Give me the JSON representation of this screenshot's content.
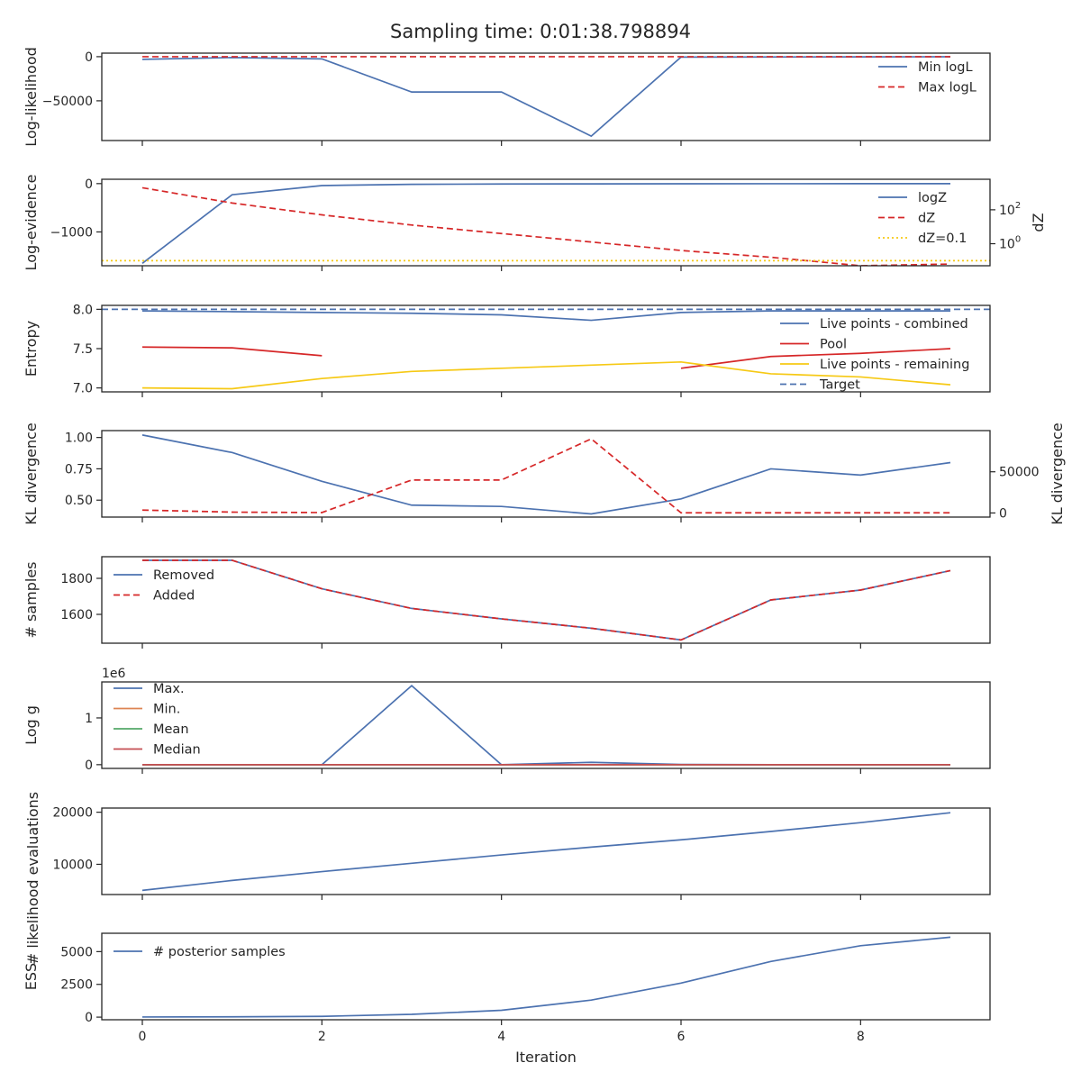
{
  "figure": {
    "title": "Sampling time: 0:01:38.798894",
    "xlabel": "Iteration",
    "x_ticks": [
      "0",
      "2",
      "4",
      "6",
      "8"
    ]
  },
  "chart_data": [
    {
      "type": "line",
      "ylabel": "Log-likelihood",
      "ylim": [
        -95000,
        4000
      ],
      "yticks": [
        {
          "v": 0,
          "label": "0"
        },
        {
          "v": -50000,
          "label": "−50000"
        }
      ],
      "legend": "top-right",
      "series": [
        {
          "name": "Min logL",
          "color": "#4c72b0",
          "dash": "",
          "x": [
            0,
            1,
            2,
            3,
            4,
            5,
            6,
            7,
            8,
            9
          ],
          "values": [
            -3000,
            -1000,
            -2500,
            -40000,
            -40000,
            -90000,
            -500,
            -300,
            -200,
            -100
          ]
        },
        {
          "name": "Max logL",
          "color": "#d62728",
          "dash": "dashed",
          "x": [
            0,
            1,
            2,
            3,
            4,
            5,
            6,
            7,
            8,
            9
          ],
          "values": [
            0,
            0,
            0,
            0,
            0,
            0,
            0,
            0,
            0,
            0
          ]
        }
      ]
    },
    {
      "type": "line",
      "ylabel": "Log-evidence",
      "ylim": [
        -1700,
        90
      ],
      "yticks": [
        {
          "v": 0,
          "label": "0"
        },
        {
          "v": -1000,
          "label": "−1000"
        }
      ],
      "secondary": {
        "ylabel": "dZ",
        "scale": "log",
        "ylim_log10": [
          -1.3,
          3.8
        ],
        "yticks": [
          {
            "v": 2,
            "label": "10",
            "exp": "2"
          },
          {
            "v": 0,
            "label": "10",
            "exp": "0"
          }
        ]
      },
      "legend": "top-right",
      "series": [
        {
          "name": "logZ",
          "color": "#4c72b0",
          "dash": "",
          "axis": "left",
          "x": [
            0,
            1,
            2,
            3,
            4,
            5,
            6,
            7,
            8,
            9
          ],
          "values": [
            -1650,
            -230,
            -40,
            -15,
            -8,
            -5,
            -3,
            -2,
            -1,
            -1
          ]
        },
        {
          "name": "dZ",
          "color": "#d62728",
          "dash": "dashed",
          "axis": "right",
          "x": [
            0,
            1,
            2,
            3,
            4,
            5,
            6,
            7,
            8,
            9
          ],
          "values_log10": [
            3.3,
            2.4,
            1.7,
            1.1,
            0.6,
            0.1,
            -0.4,
            -0.8,
            -1.3,
            -1.2
          ]
        },
        {
          "name": "dZ=0.1",
          "color": "#f6c915",
          "dash": "dotted",
          "axis": "right",
          "hline_log10": -1
        }
      ]
    },
    {
      "type": "line",
      "ylabel": "Entropy",
      "ylim": [
        6.95,
        8.05
      ],
      "yticks": [
        {
          "v": 8.0,
          "label": "8.0"
        },
        {
          "v": 7.5,
          "label": "7.5"
        },
        {
          "v": 7.0,
          "label": "7.0"
        }
      ],
      "legend": "bottom-right",
      "series": [
        {
          "name": "Live points - combined",
          "color": "#4c72b0",
          "dash": "",
          "x": [
            0,
            1,
            2,
            3,
            4,
            5,
            6,
            7,
            8,
            9
          ],
          "values": [
            7.98,
            7.97,
            7.96,
            7.95,
            7.93,
            7.86,
            7.96,
            7.98,
            7.98,
            7.98
          ]
        },
        {
          "name": "Pool",
          "color": "#d62728",
          "dash": "",
          "segments": [
            {
              "x": [
                0,
                1,
                2
              ],
              "values": [
                7.52,
                7.51,
                7.41
              ]
            },
            {
              "x": [
                6,
                7,
                8,
                9
              ],
              "values": [
                7.25,
                7.4,
                7.44,
                7.5
              ]
            }
          ]
        },
        {
          "name": "Live points - remaining",
          "color": "#f6c915",
          "dash": "",
          "x": [
            0,
            1,
            2,
            3,
            4,
            5,
            6,
            7,
            8,
            9
          ],
          "values": [
            7.0,
            6.99,
            7.12,
            7.21,
            7.25,
            7.29,
            7.33,
            7.18,
            7.14,
            7.04
          ]
        },
        {
          "name": "Target",
          "color": "#4c72b0",
          "dash": "dashed",
          "hline": 8.0
        }
      ]
    },
    {
      "type": "line",
      "ylabel": "KL divergence",
      "ylim": [
        0.365,
        1.055
      ],
      "yticks": [
        {
          "v": 1.0,
          "label": "1.00"
        },
        {
          "v": 0.75,
          "label": "0.75"
        },
        {
          "v": 0.5,
          "label": "0.50"
        }
      ],
      "secondary": {
        "ylabel": "KL divergence",
        "ylim": [
          -5000,
          100000
        ],
        "yticks": [
          {
            "v": 50000,
            "label": "50000"
          },
          {
            "v": 0,
            "label": "0"
          }
        ]
      },
      "series": [
        {
          "name": "",
          "color": "#4c72b0",
          "dash": "",
          "axis": "left",
          "x": [
            0,
            1,
            2,
            3,
            4,
            5,
            6,
            7,
            8,
            9
          ],
          "values": [
            1.02,
            0.88,
            0.65,
            0.46,
            0.45,
            0.39,
            0.51,
            0.75,
            0.7,
            0.8
          ]
        },
        {
          "name": "",
          "color": "#d62728",
          "dash": "dashed",
          "axis": "right",
          "x": [
            0,
            1,
            2,
            3,
            4,
            5,
            6,
            7,
            8,
            9
          ],
          "values": [
            3500,
            1000,
            500,
            40000,
            40000,
            90000,
            200,
            200,
            200,
            200
          ]
        }
      ]
    },
    {
      "type": "line",
      "ylabel": "# samples",
      "ylim": [
        1440,
        1920
      ],
      "yticks": [
        {
          "v": 1800,
          "label": "1800"
        },
        {
          "v": 1600,
          "label": "1600"
        }
      ],
      "legend": "top-left",
      "series": [
        {
          "name": "Removed",
          "color": "#4c72b0",
          "dash": "",
          "x": [
            0,
            1,
            2,
            3,
            4,
            5,
            6,
            7,
            8,
            9
          ],
          "values": [
            1900,
            1900,
            1742,
            1633,
            1575,
            1523,
            1458,
            1680,
            1735,
            1843
          ]
        },
        {
          "name": "Added",
          "color": "#d62728",
          "dash": "dashed",
          "x": [
            0,
            1,
            2,
            3,
            4,
            5,
            6,
            7,
            8,
            9
          ],
          "values": [
            1900,
            1900,
            1742,
            1633,
            1575,
            1523,
            1458,
            1680,
            1735,
            1843
          ]
        }
      ]
    },
    {
      "type": "line",
      "ylabel": "Log g",
      "offset_label": "1e6",
      "ylim": [
        -0.08,
        1.77
      ],
      "yticks": [
        {
          "v": 1,
          "label": "1"
        },
        {
          "v": 0,
          "label": "0"
        }
      ],
      "legend": "top-left",
      "series": [
        {
          "name": "Max.",
          "color": "#4c72b0",
          "dash": "",
          "x": [
            0,
            1,
            2,
            3,
            4,
            5,
            6,
            7,
            8,
            9
          ],
          "values": [
            0,
            0,
            0,
            1.69,
            0,
            0.05,
            0.005,
            0,
            0,
            0
          ]
        },
        {
          "name": "Min.",
          "color": "#dd8452",
          "dash": "",
          "x": [
            0,
            1,
            2,
            3,
            4,
            5,
            6,
            7,
            8,
            9
          ],
          "values": [
            0,
            0,
            0,
            0,
            0,
            0,
            0,
            0,
            0,
            0
          ]
        },
        {
          "name": "Mean",
          "color": "#55a868",
          "dash": "",
          "x": [
            0,
            1,
            2,
            3,
            4,
            5,
            6,
            7,
            8,
            9
          ],
          "values": [
            0,
            0,
            0,
            0,
            0,
            0,
            0,
            0,
            0,
            0
          ]
        },
        {
          "name": "Median",
          "color": "#c44e52",
          "dash": "",
          "x": [
            0,
            1,
            2,
            3,
            4,
            5,
            6,
            7,
            8,
            9
          ],
          "values": [
            0,
            0,
            0,
            0,
            0,
            0,
            0,
            0,
            0,
            0
          ]
        }
      ]
    },
    {
      "type": "line",
      "ylabel": "# likelihood evaluations",
      "ylim": [
        4200,
        20800
      ],
      "yticks": [
        {
          "v": 20000,
          "label": "20000"
        },
        {
          "v": 10000,
          "label": "10000"
        }
      ],
      "series": [
        {
          "name": "",
          "color": "#4c72b0",
          "dash": "",
          "x": [
            0,
            1,
            2,
            3,
            4,
            5,
            6,
            7,
            8,
            9
          ],
          "values": [
            5000,
            6900,
            8600,
            10200,
            11800,
            13300,
            14700,
            16300,
            18000,
            19900
          ]
        }
      ]
    },
    {
      "type": "line",
      "ylabel": "ESS",
      "ylim": [
        -200,
        6400
      ],
      "yticks": [
        {
          "v": 5000,
          "label": "5000"
        },
        {
          "v": 2500,
          "label": "2500"
        },
        {
          "v": 0,
          "label": "0"
        }
      ],
      "legend": "top-left",
      "series": [
        {
          "name": "# posterior samples",
          "color": "#4c72b0",
          "dash": "",
          "x": [
            0,
            1,
            2,
            3,
            4,
            5,
            6,
            7,
            8,
            9
          ],
          "values": [
            10,
            25,
            60,
            210,
            520,
            1300,
            2600,
            4250,
            5450,
            6100
          ]
        }
      ]
    }
  ]
}
